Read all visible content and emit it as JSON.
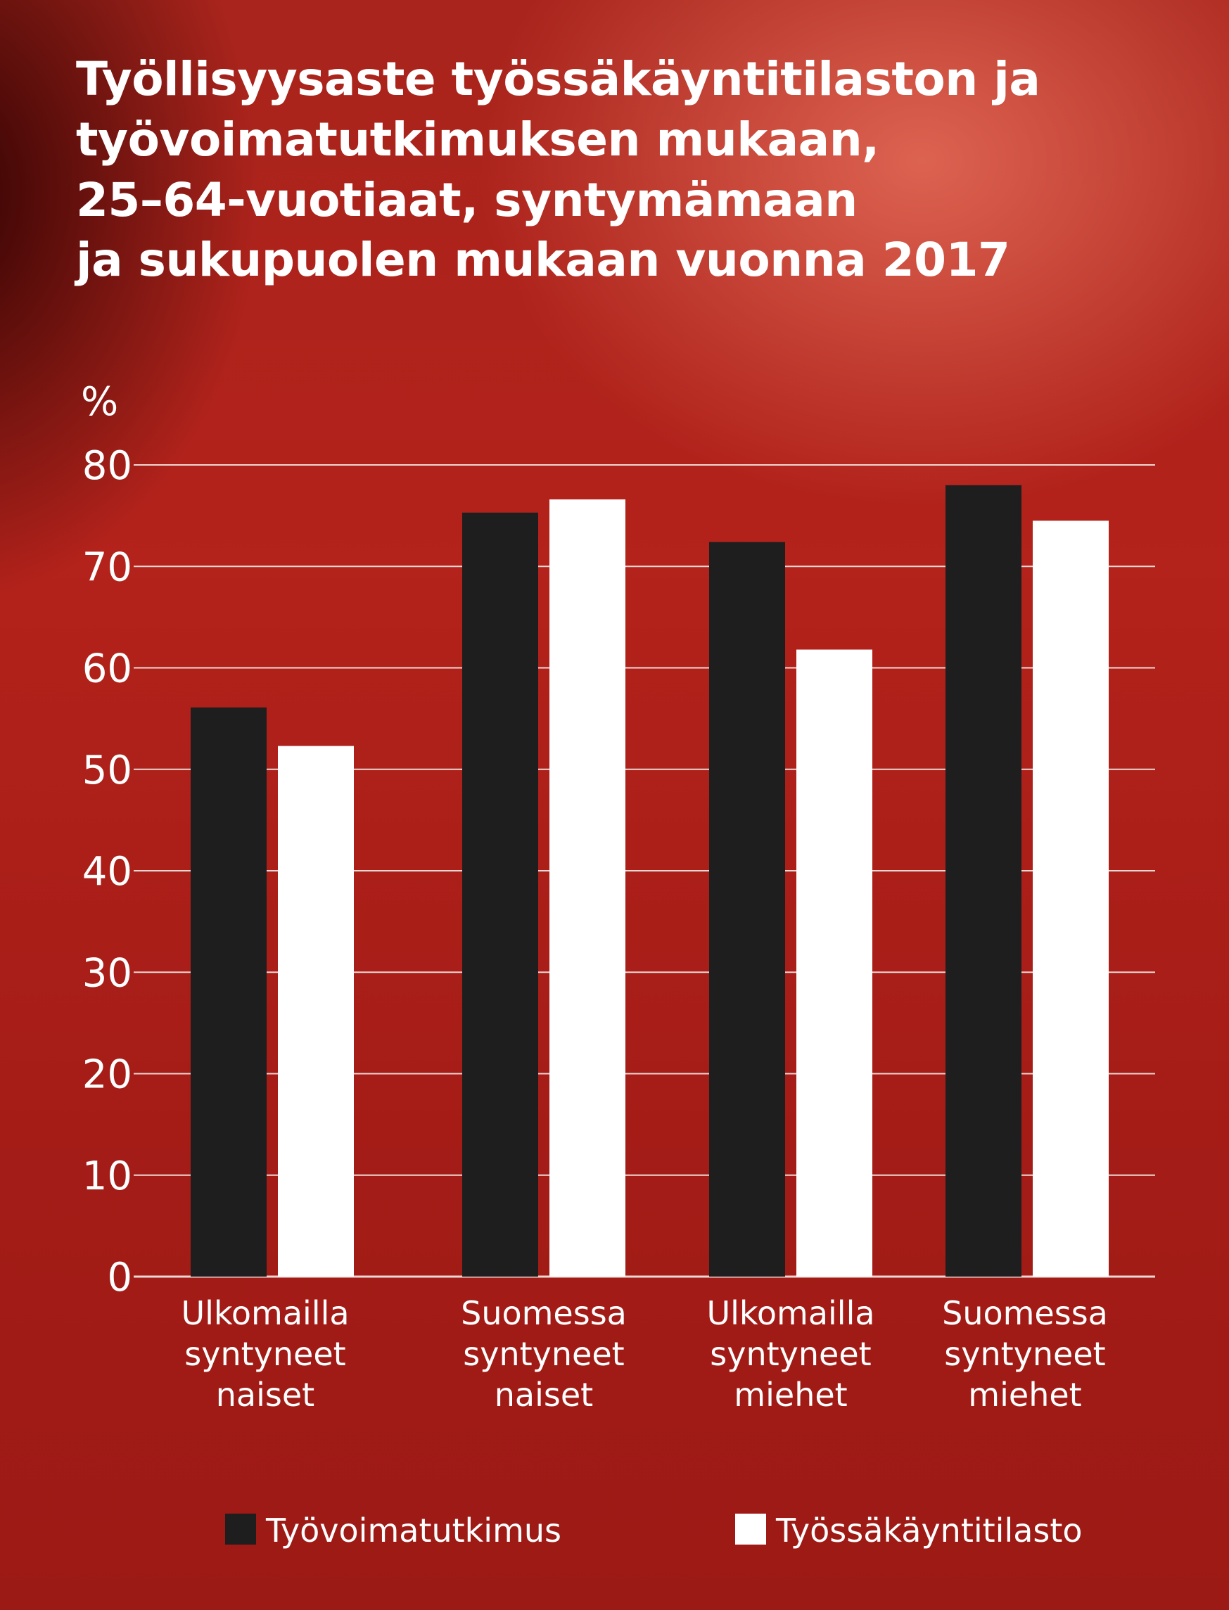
{
  "title_lines": [
    "Työllisyysaste työssäkäyntitilaston ja",
    "työvoimatutkimuksen mukaan,",
    "25–64-vuotiaat, syntymämaan",
    "ja sukupuolen mukaan vuonna 2017"
  ],
  "chart_data": {
    "type": "bar",
    "title": "Työllisyysaste työssäkäyntitilaston ja työvoimatutkimuksen mukaan, 25–64-vuotiaat, syntymämaan ja sukupuolen mukaan vuonna 2017",
    "ylabel": "%",
    "xlabel": "",
    "ylim": [
      0,
      80
    ],
    "yticks": [
      0,
      10,
      20,
      30,
      40,
      50,
      60,
      70,
      80
    ],
    "grid": true,
    "legend_position": "bottom",
    "categories": [
      [
        "Ulkomailla",
        "syntyneet",
        "naiset"
      ],
      [
        "Suomessa",
        "syntyneet",
        "naiset"
      ],
      [
        "Ulkomailla",
        "syntyneet",
        "miehet"
      ],
      [
        "Suomessa",
        "syntyneet",
        "miehet"
      ]
    ],
    "series": [
      {
        "name": "Työvoimatutkimus",
        "color": "#1e1e1e",
        "values": [
          56.1,
          75.3,
          72.4,
          78.0
        ]
      },
      {
        "name": "Työssäkäyntitilasto",
        "color": "#ffffff",
        "values": [
          52.3,
          76.6,
          61.8,
          74.5
        ]
      }
    ]
  },
  "colors": {
    "background": "#a8231b",
    "gridline": "#f0d8d4",
    "text": "#ffffff"
  }
}
